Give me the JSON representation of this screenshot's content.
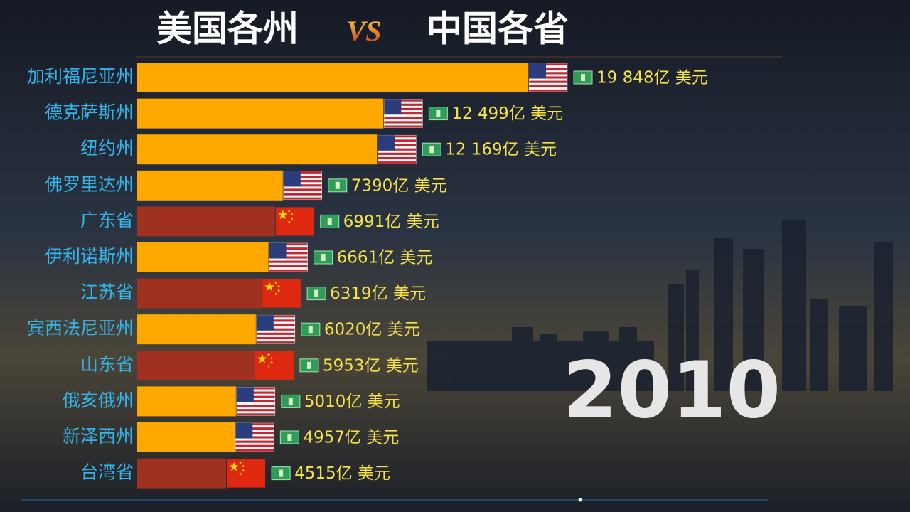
{
  "chart_data": {
    "type": "bar",
    "orientation": "horizontal",
    "title": [
      "美国各州",
      "VS",
      "中国各省"
    ],
    "annotation": "2010",
    "categories": [
      "加利福尼亚州",
      "德克萨斯州",
      "纽约州",
      "佛罗里达州",
      "广东省",
      "伊利诺斯州",
      "江苏省",
      "宾西法尼亚州",
      "山东省",
      "俄亥俄州",
      "新泽西州",
      "台湾省"
    ],
    "values": [
      19848,
      12499,
      12169,
      7390,
      6991,
      6661,
      6319,
      6020,
      5953,
      5010,
      4957,
      4515
    ],
    "value_labels": [
      "19 848亿 美元",
      "12 499亿 美元",
      "12 169亿 美元",
      "7390亿 美元",
      "6991亿 美元",
      "6661亿 美元",
      "6319亿 美元",
      "6020亿 美元",
      "5953亿 美元",
      "5010亿 美元",
      "4957亿 美元",
      "4515亿 美元"
    ],
    "colors": [
      "#ffa800",
      "#ffa800",
      "#ffa800",
      "#ffa800",
      "#a0301f",
      "#ffa800",
      "#a0301f",
      "#ffa800",
      "#a0301f",
      "#ffa800",
      "#ffa800",
      "#a0301f"
    ]
  }
}
